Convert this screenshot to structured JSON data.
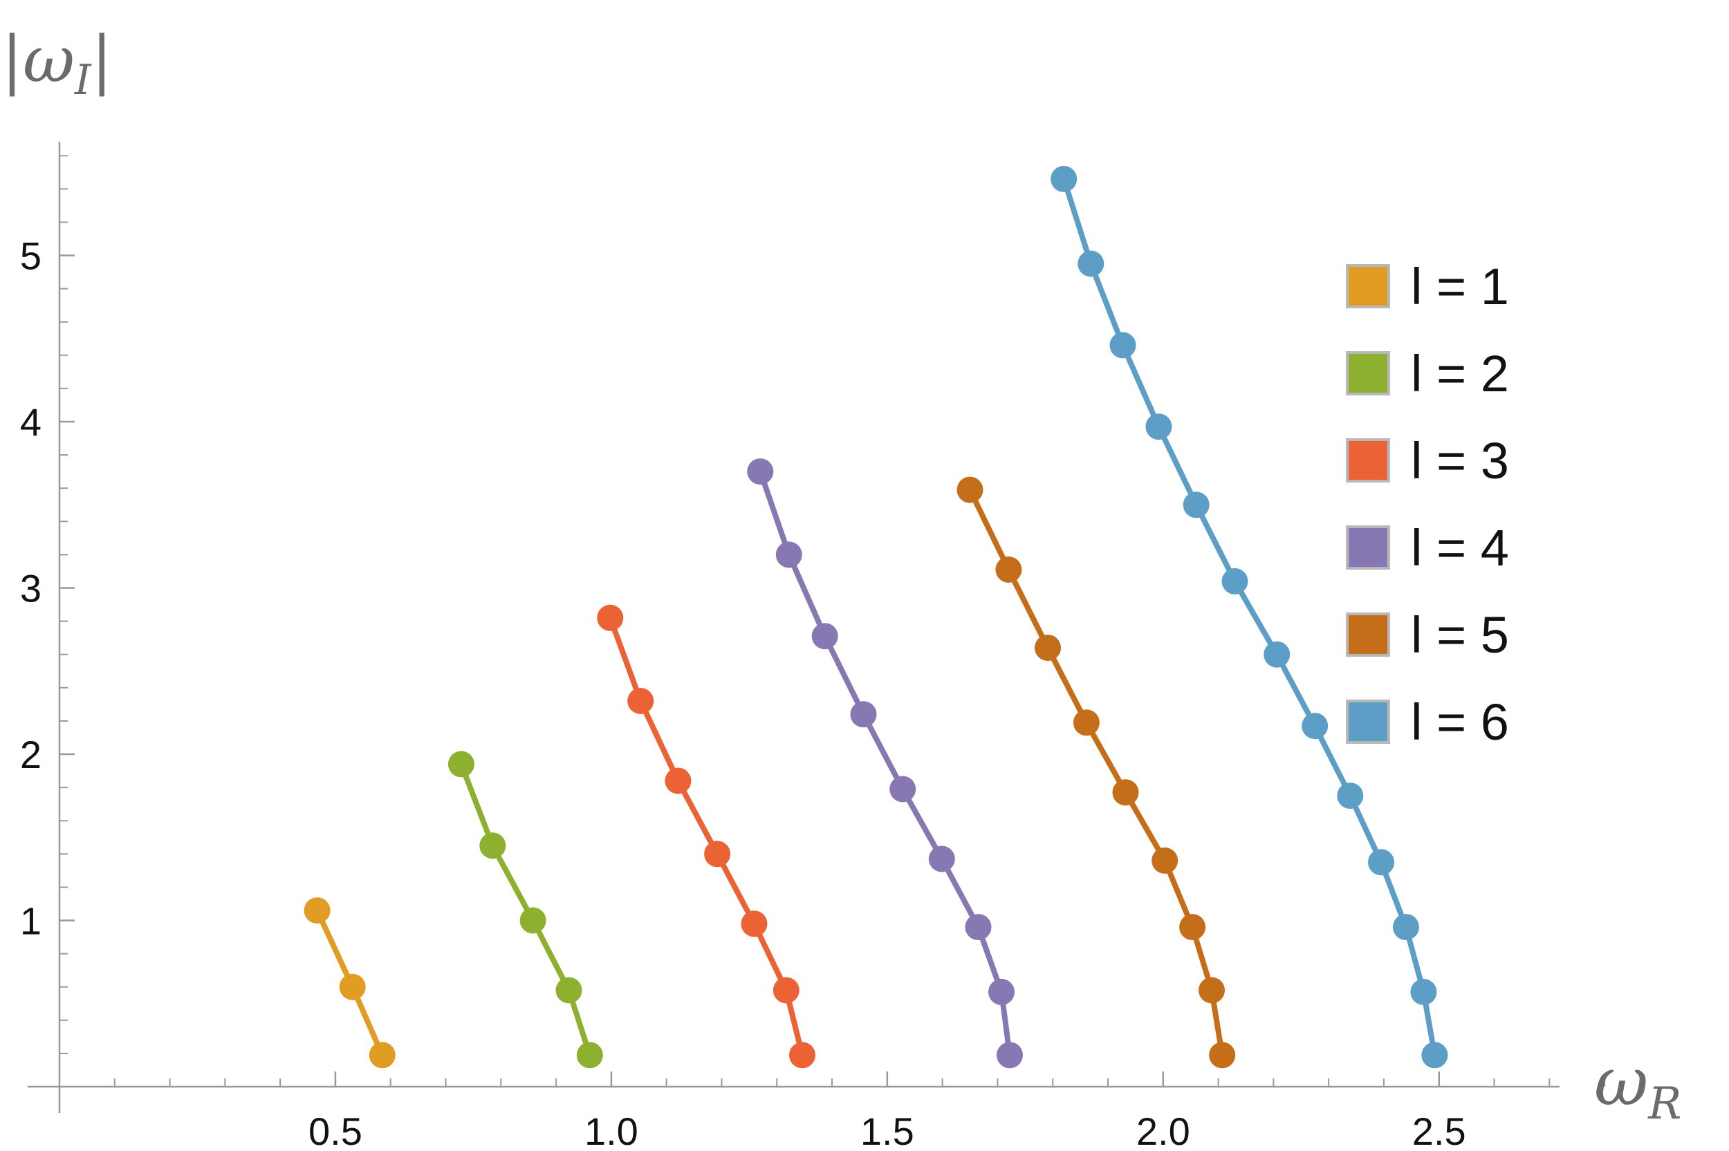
{
  "chart_data": {
    "type": "line",
    "markers": true,
    "xlabel_main": "ω",
    "xlabel_sub": "R",
    "ylabel_main": "|ω",
    "ylabel_sub": "I",
    "ylabel_close": "|",
    "xlim": [
      0.0,
      2.85
    ],
    "ylim": [
      0.0,
      5.65
    ],
    "x_ticks": [
      0.5,
      1.0,
      1.5,
      2.0,
      2.5
    ],
    "x_tick_labels": [
      "0.5",
      "1.0",
      "1.5",
      "2.0",
      "2.5"
    ],
    "y_ticks": [
      1,
      2,
      3,
      4,
      5
    ],
    "y_tick_labels": [
      "1",
      "2",
      "3",
      "4",
      "5"
    ],
    "grid": false,
    "legend_position": "right",
    "series": [
      {
        "name": "l = 1",
        "color": "#E19C24",
        "x": [
          0.467,
          0.531,
          0.585
        ],
        "y": [
          1.06,
          0.6,
          0.19
        ]
      },
      {
        "name": "l = 2",
        "color": "#8EB030",
        "x": [
          0.728,
          0.785,
          0.858,
          0.923,
          0.961
        ],
        "y": [
          1.94,
          1.45,
          1.0,
          0.58,
          0.19
        ]
      },
      {
        "name": "l = 3",
        "color": "#EB6235",
        "x": [
          0.998,
          1.053,
          1.121,
          1.192,
          1.259,
          1.317,
          1.346
        ],
        "y": [
          2.82,
          2.32,
          1.84,
          1.4,
          0.98,
          0.58,
          0.19
        ]
      },
      {
        "name": "l = 4",
        "color": "#8778B3",
        "x": [
          1.27,
          1.322,
          1.387,
          1.457,
          1.528,
          1.599,
          1.665,
          1.707,
          1.722
        ],
        "y": [
          3.7,
          3.2,
          2.71,
          2.24,
          1.79,
          1.37,
          0.96,
          0.57,
          0.19
        ]
      },
      {
        "name": "l = 5",
        "color": "#C56E1A",
        "x": [
          1.65,
          1.72,
          1.791,
          1.861,
          1.932,
          2.003,
          2.053,
          2.088,
          2.107
        ],
        "y": [
          3.59,
          3.11,
          2.64,
          2.19,
          1.77,
          1.36,
          0.96,
          0.58,
          0.19
        ]
      },
      {
        "name": "l = 6",
        "color": "#5D9EC7",
        "x": [
          1.82,
          1.869,
          1.927,
          1.992,
          2.06,
          2.13,
          2.206,
          2.275,
          2.339,
          2.395,
          2.44,
          2.472,
          2.492
        ],
        "y": [
          5.46,
          4.95,
          4.46,
          3.97,
          3.5,
          3.04,
          2.6,
          2.17,
          1.75,
          1.35,
          0.96,
          0.57,
          0.19
        ]
      }
    ]
  }
}
